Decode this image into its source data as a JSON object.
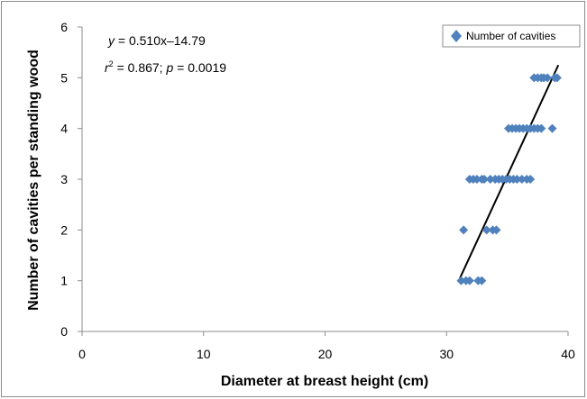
{
  "chart_data": {
    "type": "scatter",
    "xlabel": "Diameter at breast height (cm)",
    "ylabel": "Number of cavities per standing wood",
    "xlim": [
      0,
      40
    ],
    "ylim": [
      0,
      6
    ],
    "xticks": [
      0,
      10,
      20,
      30,
      40
    ],
    "yticks": [
      0,
      1,
      2,
      3,
      4,
      5,
      6
    ],
    "grid": false,
    "legend": "top-right",
    "series": [
      {
        "name": "Number of cavities",
        "color": "#4F81BD",
        "marker": "diamond",
        "points": [
          [
            31.2,
            1
          ],
          [
            31.6,
            1
          ],
          [
            31.9,
            1
          ],
          [
            32.6,
            1
          ],
          [
            32.9,
            1
          ],
          [
            31.4,
            2
          ],
          [
            33.3,
            2
          ],
          [
            33.8,
            2
          ],
          [
            34.1,
            2
          ],
          [
            31.9,
            3
          ],
          [
            32.2,
            3
          ],
          [
            32.5,
            3
          ],
          [
            32.9,
            3
          ],
          [
            33.1,
            3
          ],
          [
            33.6,
            3
          ],
          [
            34.0,
            3
          ],
          [
            34.3,
            3
          ],
          [
            34.6,
            3
          ],
          [
            34.9,
            3
          ],
          [
            35.2,
            3
          ],
          [
            35.5,
            3
          ],
          [
            35.8,
            3
          ],
          [
            36.2,
            3
          ],
          [
            36.6,
            3
          ],
          [
            36.9,
            3
          ],
          [
            35.1,
            4
          ],
          [
            35.4,
            4
          ],
          [
            35.7,
            4
          ],
          [
            36.0,
            4
          ],
          [
            36.3,
            4
          ],
          [
            36.6,
            4
          ],
          [
            36.9,
            4
          ],
          [
            37.2,
            4
          ],
          [
            37.5,
            4
          ],
          [
            37.8,
            4
          ],
          [
            38.7,
            4
          ],
          [
            37.2,
            5
          ],
          [
            37.5,
            5
          ],
          [
            37.8,
            5
          ],
          [
            38.0,
            5
          ],
          [
            38.3,
            5
          ],
          [
            38.9,
            5
          ],
          [
            39.1,
            5
          ]
        ]
      }
    ],
    "trendline": {
      "color": "#000000",
      "x_range": [
        31.1,
        39.2
      ],
      "y_range": [
        1.05,
        5.25
      ]
    },
    "annotations": {
      "equation_y": "y",
      "equation_rest": " = 0.510x–14.79",
      "r": "r",
      "r_exp": "2",
      "r_rest": " = 0.867; ",
      "p": "p",
      "p_rest": " = 0.0019"
    }
  }
}
